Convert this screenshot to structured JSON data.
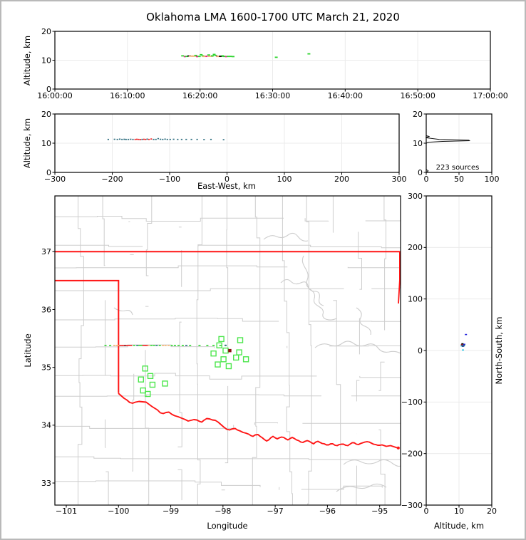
{
  "figure": {
    "title": "Oklahoma LMA 1600-1700 UTC March 21, 2020",
    "background": "#ffffff",
    "window_border_color": "#b9b9b9"
  },
  "palette": {
    "green": "#2ed42e",
    "square_green": "#4ce64c",
    "orange": "#f0b070",
    "magenta": "#e6188c",
    "red": "#ee2222",
    "dark_red": "#8b1010",
    "teal": "#2e6e80",
    "blue": "#2525dd",
    "cyan": "#29c5e6",
    "black": "#000000",
    "grid": "#ebebeb",
    "county": "#cdcdcd",
    "border_red": "#ff1515",
    "frame": "#000000"
  },
  "chart_data": [
    {
      "id": "time_height",
      "type": "scatter",
      "xlabel": "",
      "ylabel": "Altitude, km",
      "x_ticks": [
        "16:00:00",
        "16:10:00",
        "16:20:00",
        "16:30:00",
        "16:40:00",
        "16:50:00",
        "17:00:00"
      ],
      "xlim_minutes": [
        0,
        60
      ],
      "ylim": [
        0,
        20
      ],
      "y_ticks": [
        0,
        10,
        20
      ],
      "points_time_alt_color": [
        [
          17.6,
          11.5,
          "green"
        ],
        [
          17.9,
          11.25,
          "magenta"
        ],
        [
          18.15,
          11.3,
          "green"
        ],
        [
          18.5,
          11.45,
          "black"
        ],
        [
          18.8,
          11.4,
          "orange"
        ],
        [
          19.15,
          11.4,
          "orange"
        ],
        [
          19.4,
          11.65,
          "green"
        ],
        [
          19.6,
          11.25,
          "magenta"
        ],
        [
          19.9,
          11.3,
          "green"
        ],
        [
          20.15,
          11.9,
          "green"
        ],
        [
          20.4,
          11.5,
          "green"
        ],
        [
          20.65,
          11.3,
          "orange"
        ],
        [
          20.9,
          11.35,
          "magenta"
        ],
        [
          21.2,
          11.8,
          "green"
        ],
        [
          21.45,
          11.35,
          "orange"
        ],
        [
          21.7,
          11.5,
          "green"
        ],
        [
          21.95,
          12.0,
          "green"
        ],
        [
          22.15,
          11.65,
          "green"
        ],
        [
          22.35,
          11.35,
          "magenta"
        ],
        [
          22.6,
          11.3,
          "orange"
        ],
        [
          22.85,
          11.35,
          "black"
        ],
        [
          23.1,
          11.5,
          "green"
        ],
        [
          23.35,
          11.3,
          "green"
        ],
        [
          23.6,
          11.25,
          "magenta"
        ],
        [
          23.85,
          11.3,
          "green"
        ],
        [
          24.2,
          11.3,
          "green"
        ],
        [
          24.55,
          11.25,
          "green"
        ],
        [
          30.5,
          11.0,
          "green"
        ],
        [
          35.0,
          12.2,
          "green"
        ]
      ]
    },
    {
      "id": "east_west_height",
      "type": "scatter",
      "xlabel": "East-West, km",
      "ylabel": "Altitude, km",
      "xlim": [
        -300,
        300
      ],
      "x_ticks": [
        -300,
        -200,
        -100,
        0,
        100,
        200,
        300
      ],
      "ylim": [
        0,
        20
      ],
      "y_ticks": [
        0,
        10,
        20
      ],
      "points_ew_alt_color": [
        [
          -207,
          11.3,
          "teal"
        ],
        [
          -196,
          11.35,
          "teal"
        ],
        [
          -191,
          11.3,
          "teal"
        ],
        [
          -187,
          11.4,
          "teal"
        ],
        [
          -183,
          11.3,
          "teal"
        ],
        [
          -179,
          11.35,
          "teal"
        ],
        [
          -176,
          11.3,
          "teal"
        ],
        [
          -172,
          11.3,
          "teal"
        ],
        [
          -168,
          11.35,
          "teal"
        ],
        [
          -164,
          11.3,
          "teal"
        ],
        [
          -160,
          11.3,
          "red"
        ],
        [
          -157,
          11.35,
          "red"
        ],
        [
          -154,
          11.3,
          "red"
        ],
        [
          -151,
          11.25,
          "red"
        ],
        [
          -148,
          11.3,
          "teal"
        ],
        [
          -145,
          11.35,
          "red"
        ],
        [
          -142,
          11.3,
          "red"
        ],
        [
          -139,
          11.4,
          "teal"
        ],
        [
          -136,
          11.3,
          "red"
        ],
        [
          -132,
          11.45,
          "red"
        ],
        [
          -128,
          11.3,
          "teal"
        ],
        [
          -124,
          11.3,
          "teal"
        ],
        [
          -120,
          11.55,
          "teal"
        ],
        [
          -116,
          11.35,
          "teal"
        ],
        [
          -112,
          11.3,
          "teal"
        ],
        [
          -108,
          11.4,
          "teal"
        ],
        [
          -104,
          11.3,
          "teal"
        ],
        [
          -99,
          11.3,
          "teal"
        ],
        [
          -93,
          11.35,
          "teal"
        ],
        [
          -86,
          11.3,
          "teal"
        ],
        [
          -79,
          11.3,
          "teal"
        ],
        [
          -71,
          11.3,
          "teal"
        ],
        [
          -62,
          11.3,
          "teal"
        ],
        [
          -52,
          11.3,
          "teal"
        ],
        [
          -40,
          11.25,
          "teal"
        ],
        [
          -28,
          11.3,
          "teal"
        ],
        [
          -6,
          11.2,
          "teal"
        ]
      ]
    },
    {
      "id": "altitude_histogram",
      "type": "line",
      "annotation": "223 sources",
      "sources_count": 223,
      "xlim": [
        0,
        100
      ],
      "x_ticks": [
        0,
        50,
        100
      ],
      "ylim": [
        0,
        20
      ],
      "y_ticks": [
        0,
        10,
        20
      ],
      "curve_count_alt": [
        [
          0,
          20
        ],
        [
          0,
          12.55
        ],
        [
          5,
          12.3
        ],
        [
          1,
          12.05
        ],
        [
          0,
          11.85
        ],
        [
          20,
          11.3
        ],
        [
          65,
          11.05
        ],
        [
          66,
          10.85
        ],
        [
          25,
          10.6
        ],
        [
          4,
          10.35
        ],
        [
          1,
          10.1
        ],
        [
          0,
          9.9
        ],
        [
          0,
          1.0
        ],
        [
          3,
          0.5
        ],
        [
          1,
          0.15
        ],
        [
          0,
          0
        ]
      ]
    },
    {
      "id": "plan_view_map",
      "type": "scatter",
      "xlabel": "Longitude",
      "ylabel": "Latitude",
      "xlim": [
        -101.22,
        -94.6
      ],
      "x_ticks": [
        -101,
        -100,
        -99,
        -98,
        -97,
        -96,
        -95
      ],
      "ylim": [
        32.62,
        37.97
      ],
      "y_ticks": [
        33,
        34,
        35,
        36,
        37
      ],
      "source_squares_lon_lat": [
        [
          -98.03,
          35.49
        ],
        [
          -97.67,
          35.47
        ],
        [
          -98.07,
          35.38
        ],
        [
          -97.95,
          35.29
        ],
        [
          -97.69,
          35.26
        ],
        [
          -98.18,
          35.24
        ],
        [
          -97.75,
          35.17
        ],
        [
          -97.99,
          35.14
        ],
        [
          -97.56,
          35.14
        ],
        [
          -98.1,
          35.05
        ],
        [
          -97.89,
          35.02
        ],
        [
          -99.49,
          34.98
        ],
        [
          -99.39,
          34.85
        ],
        [
          -99.57,
          34.79
        ],
        [
          -99.35,
          34.7
        ],
        [
          -99.11,
          34.72
        ],
        [
          -99.53,
          34.6
        ],
        [
          -99.44,
          34.54
        ]
      ],
      "dark_red_square_lon_lat": [
        -97.87,
        35.29
      ],
      "teal_dot_lon_lat": [
        -97.95,
        35.38
      ],
      "track": {
        "lat": 35.38,
        "dashes_lon_color": [
          [
            -100.25,
            "green"
          ],
          [
            -100.16,
            "green"
          ],
          [
            -100.08,
            "orange"
          ],
          [
            -100.03,
            "orange"
          ],
          [
            -99.99,
            "orange"
          ],
          [
            -99.95,
            "red"
          ],
          [
            -99.9,
            "red"
          ],
          [
            -99.86,
            "dark_red"
          ],
          [
            -99.82,
            "red"
          ],
          [
            -99.77,
            "red"
          ],
          [
            -99.7,
            "green"
          ],
          [
            -99.64,
            "teal"
          ],
          [
            -99.6,
            "green"
          ],
          [
            -99.56,
            "green"
          ],
          [
            -99.51,
            "red"
          ],
          [
            -99.46,
            "red"
          ],
          [
            -99.42,
            "orange"
          ],
          [
            -99.37,
            "green"
          ],
          [
            -99.32,
            "green"
          ],
          [
            -99.27,
            "teal"
          ],
          [
            -99.21,
            "green"
          ],
          [
            -99.15,
            "orange"
          ],
          [
            -99.1,
            "orange"
          ],
          [
            -99.04,
            "orange"
          ],
          [
            -98.98,
            "green"
          ],
          [
            -98.92,
            "green"
          ],
          [
            -98.85,
            "green"
          ],
          [
            -98.77,
            "green"
          ],
          [
            -98.7,
            "teal"
          ],
          [
            -98.63,
            "green"
          ],
          [
            -98.45,
            "green"
          ],
          [
            -98.3,
            "green"
          ],
          [
            -98.18,
            "green"
          ],
          [
            -98.05,
            "green"
          ],
          [
            -97.95,
            "green"
          ]
        ]
      }
    },
    {
      "id": "north_south_height",
      "type": "scatter",
      "xlabel": "Altitude, km",
      "ylabel": "North-South, km",
      "xlim": [
        0,
        20
      ],
      "x_ticks": [
        0,
        10,
        20
      ],
      "ylim": [
        -300,
        300
      ],
      "y_ticks": [
        300,
        200,
        100,
        0,
        -100,
        -200,
        -300
      ],
      "points_alt_ns_color": [
        [
          11.0,
          10,
          "blue"
        ],
        [
          11.3,
          10,
          "red"
        ],
        [
          11.55,
          10,
          "green"
        ],
        [
          10.8,
          9,
          "cyan"
        ],
        [
          11.15,
          8,
          "teal"
        ],
        [
          11.6,
          12,
          "blue"
        ],
        [
          11.05,
          13,
          "black"
        ],
        [
          11.2,
          1,
          "cyan"
        ],
        [
          12.1,
          31,
          "blue"
        ],
        [
          10.9,
          11,
          "dark_red"
        ],
        [
          11.4,
          9,
          "blue"
        ]
      ]
    }
  ]
}
